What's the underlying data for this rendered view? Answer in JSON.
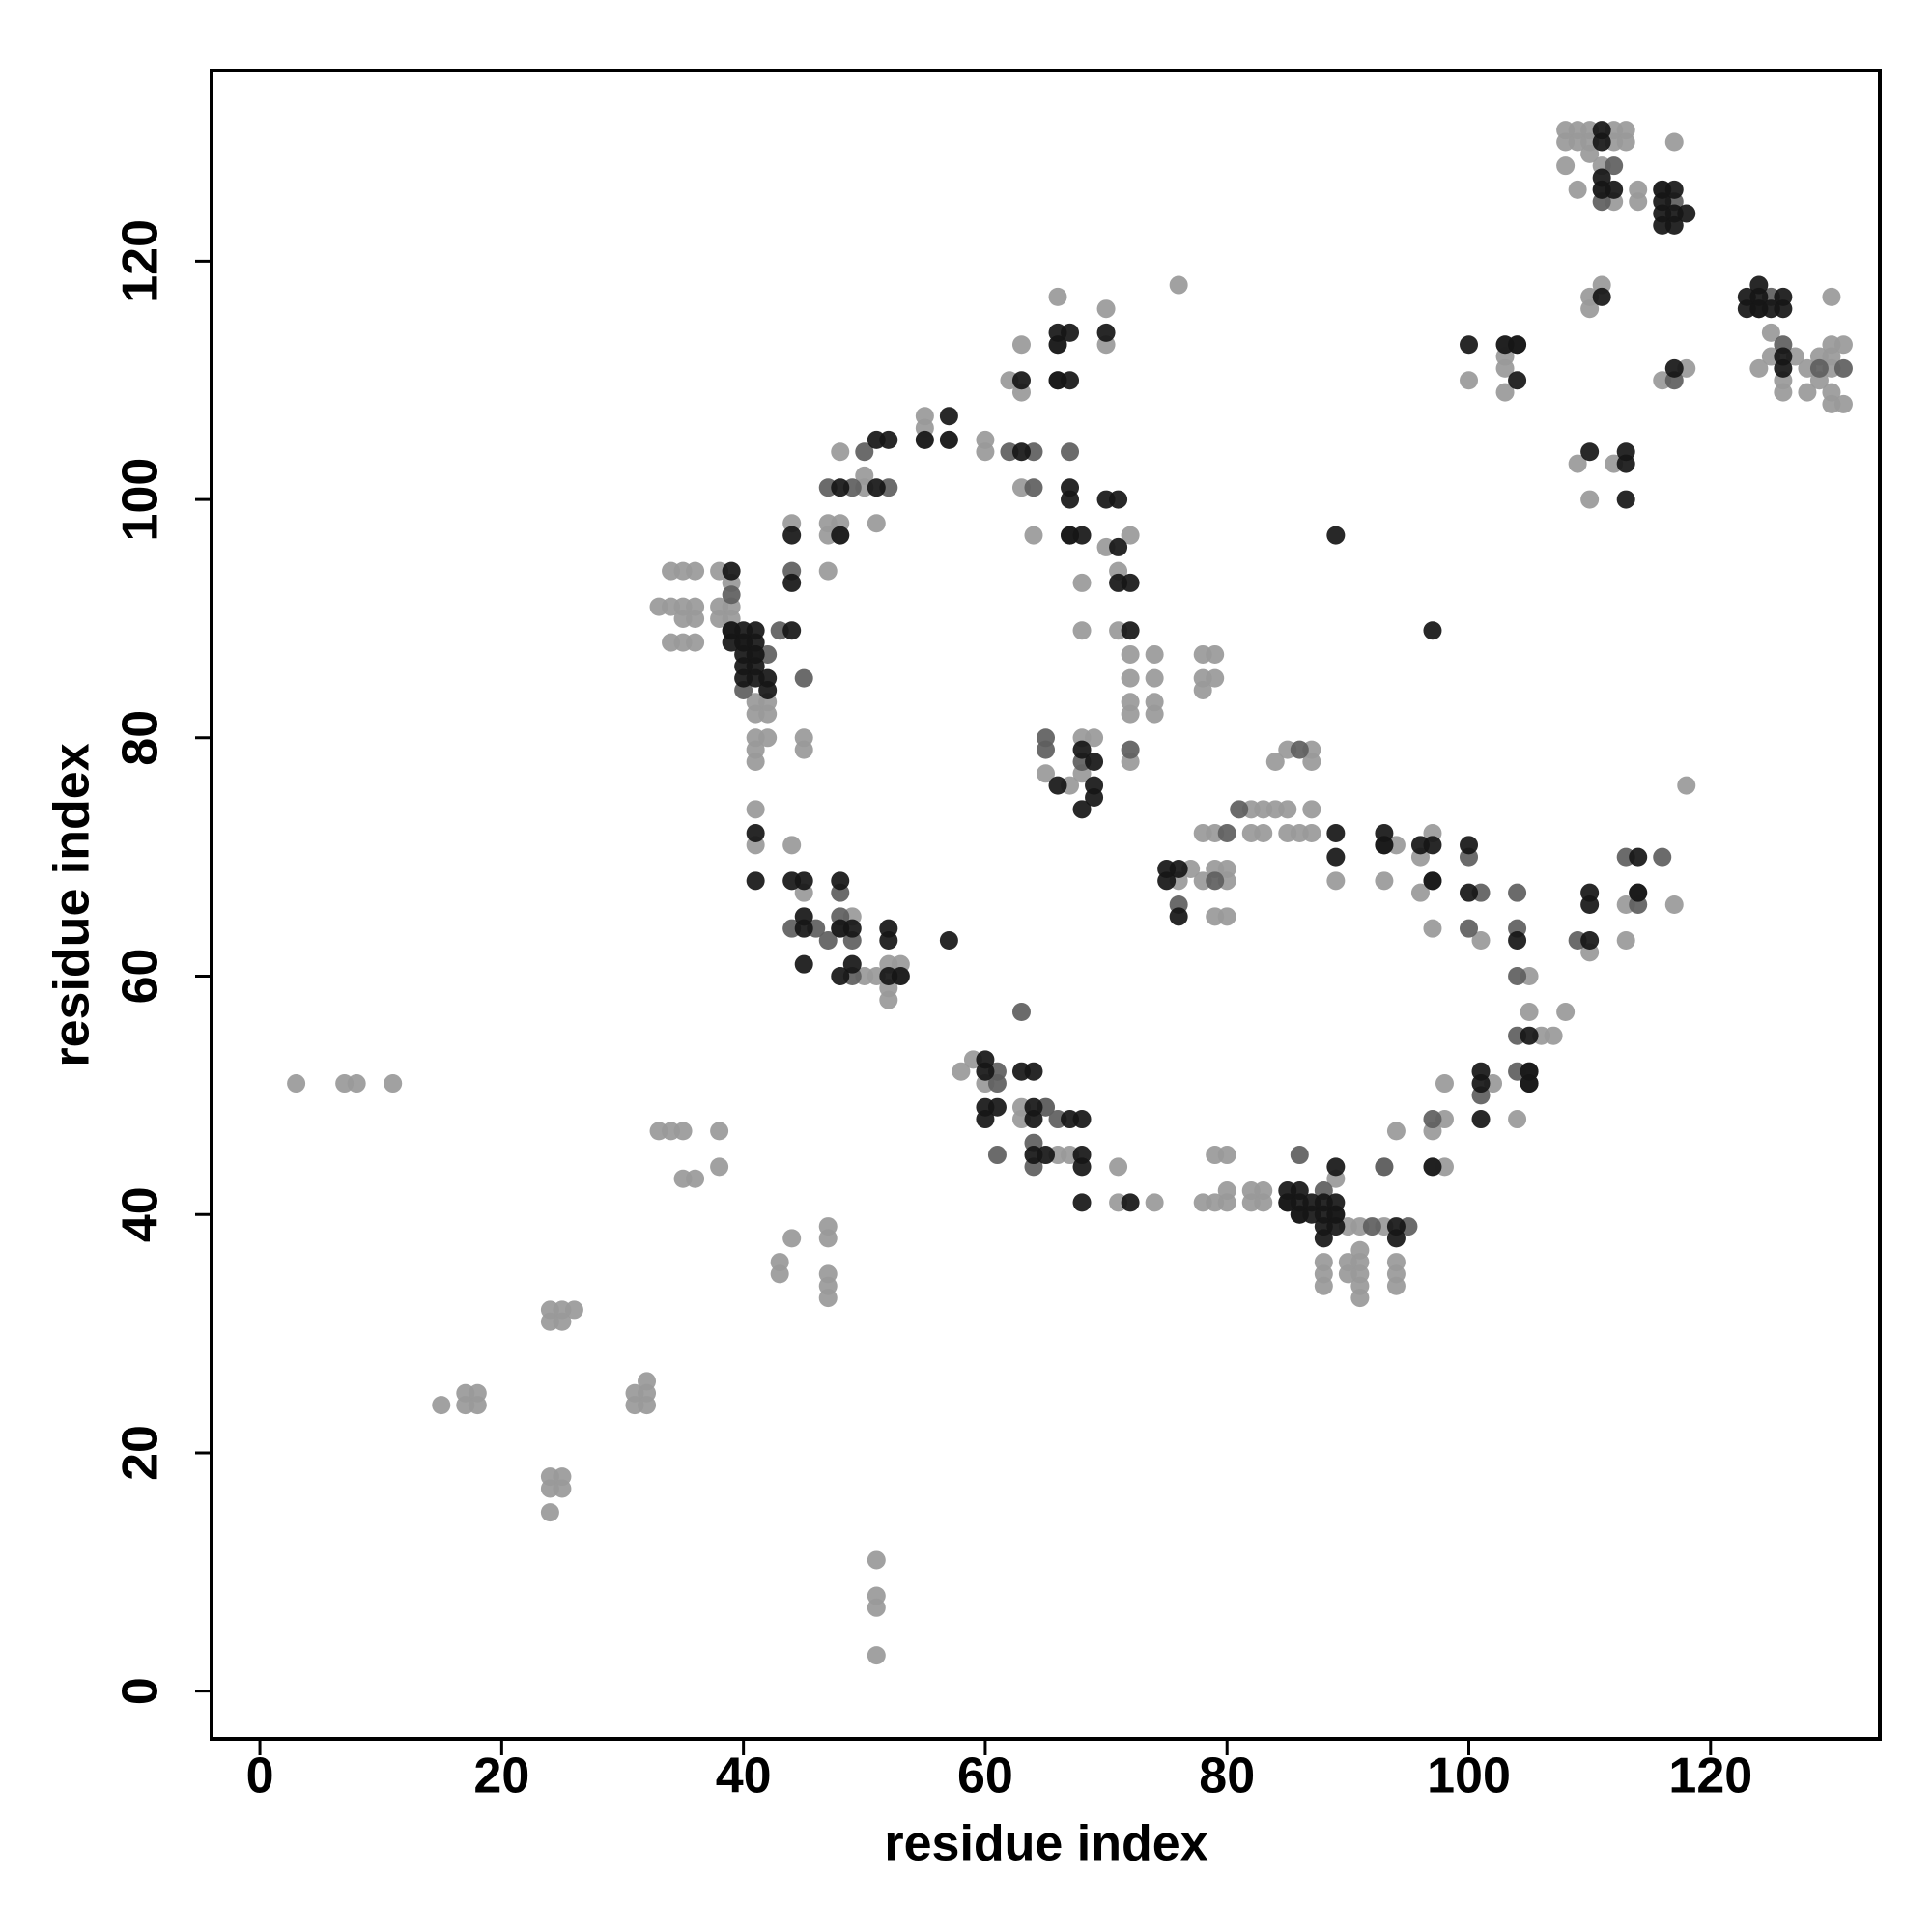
{
  "chart_data": {
    "type": "scatter",
    "xlabel": "residue index",
    "ylabel": "residue index",
    "xlim": [
      -4,
      134
    ],
    "ylim": [
      -4,
      136
    ],
    "xticks": [
      0,
      20,
      40,
      60,
      80,
      100,
      120
    ],
    "yticks": [
      0,
      20,
      40,
      60,
      80,
      100,
      120
    ],
    "grid": false,
    "series": [
      {
        "color": "#999999",
        "x": [
          3,
          7,
          8,
          11,
          15,
          17,
          17,
          18,
          18,
          24,
          24,
          25,
          25,
          26,
          24,
          24,
          25,
          25,
          24,
          31,
          31,
          32,
          32,
          32,
          33,
          34,
          35,
          35,
          36,
          38,
          38,
          43,
          43,
          44,
          47,
          47,
          47,
          47,
          47,
          51,
          51,
          51,
          51,
          33,
          34,
          34,
          34,
          35,
          35,
          35,
          35,
          36,
          36,
          36,
          36,
          38,
          38,
          38,
          39,
          39,
          39,
          41,
          41,
          42,
          42,
          41,
          42,
          41,
          41,
          45,
          45,
          41,
          41,
          44,
          45,
          49,
          48,
          44,
          47,
          47,
          47,
          48,
          48,
          48,
          50,
          50,
          51,
          55,
          55,
          55,
          57,
          60,
          60,
          62,
          63,
          63,
          63,
          64,
          66,
          66,
          68,
          68,
          70,
          70,
          70,
          71,
          71,
          72,
          72,
          72,
          72,
          72,
          74,
          74,
          74,
          74,
          76,
          78,
          78,
          78,
          79,
          79,
          65,
          67,
          68,
          68,
          69,
          72,
          50,
          51,
          52,
          52,
          52,
          53,
          53,
          58,
          59,
          60,
          63,
          63,
          65,
          66,
          67,
          71,
          71,
          74,
          78,
          79,
          79,
          80,
          80,
          80,
          82,
          82,
          83,
          83,
          76,
          77,
          78,
          78,
          79,
          79,
          79,
          80,
          80,
          80,
          82,
          82,
          83,
          83,
          84,
          84,
          85,
          85,
          85,
          86,
          87,
          87,
          87,
          87,
          89,
          93,
          94,
          96,
          96,
          97,
          97,
          97,
          97,
          98,
          98,
          98,
          101,
          102,
          104,
          105,
          105,
          106,
          107,
          108,
          88,
          88,
          88,
          89,
          90,
          90,
          90,
          91,
          91,
          91,
          91,
          91,
          91,
          93,
          94,
          94,
          94,
          94,
          93,
          108,
          108,
          108,
          109,
          109,
          109,
          110,
          110,
          110,
          111,
          111,
          112,
          112,
          112,
          113,
          113,
          114,
          114,
          117,
          116,
          118,
          116,
          110,
          110,
          111,
          109,
          110,
          112,
          113,
          113,
          117,
          118,
          110,
          103,
          103,
          103,
          100,
          103,
          124,
          125,
          125,
          126,
          126,
          127,
          128,
          128,
          129,
          129,
          130,
          130,
          130,
          130,
          130,
          130,
          131,
          131
        ],
        "values": [
          51,
          51,
          51,
          51,
          24,
          25,
          24,
          25,
          24,
          32,
          31,
          32,
          31,
          32,
          18,
          17,
          18,
          17,
          15,
          25,
          24,
          26,
          25,
          24,
          47,
          47,
          47,
          43,
          43,
          47,
          44,
          36,
          35,
          38,
          39,
          38,
          35,
          34,
          33,
          11,
          8,
          7,
          3,
          91,
          94,
          91,
          88,
          94,
          91,
          90,
          88,
          94,
          91,
          90,
          88,
          94,
          91,
          90,
          91,
          90,
          93,
          83,
          82,
          83,
          82,
          80,
          80,
          79,
          78,
          80,
          79,
          74,
          71,
          71,
          67,
          65,
          64,
          98,
          94,
          98,
          97,
          104,
          97,
          98,
          102,
          101,
          98,
          107,
          106,
          105,
          105,
          105,
          104,
          110,
          109,
          113,
          101,
          97,
          117,
          113,
          93,
          89,
          116,
          113,
          96,
          94,
          89,
          97,
          87,
          85,
          83,
          82,
          87,
          85,
          83,
          82,
          118,
          87,
          85,
          84,
          87,
          85,
          77,
          76,
          80,
          77,
          80,
          78,
          60,
          60,
          61,
          59,
          58,
          61,
          60,
          52,
          53,
          51,
          49,
          48,
          49,
          45,
          45,
          44,
          41,
          41,
          41,
          45,
          41,
          45,
          42,
          41,
          42,
          41,
          42,
          41,
          68,
          69,
          72,
          68,
          72,
          69,
          65,
          69,
          68,
          65,
          74,
          72,
          74,
          72,
          74,
          78,
          74,
          72,
          79,
          72,
          79,
          78,
          74,
          72,
          68,
          68,
          71,
          70,
          67,
          72,
          64,
          47,
          44,
          48,
          44,
          51,
          63,
          51,
          48,
          57,
          60,
          55,
          55,
          57,
          36,
          35,
          34,
          43,
          39,
          36,
          35,
          39,
          37,
          36,
          35,
          34,
          33,
          39,
          47,
          36,
          35,
          34,
          44,
          131,
          130,
          128,
          131,
          130,
          126,
          131,
          130,
          129,
          128,
          126,
          131,
          130,
          125,
          131,
          130,
          126,
          125,
          130,
          126,
          111,
          110,
          117,
          116,
          118,
          103,
          100,
          103,
          66,
          63,
          66,
          76,
          62,
          113,
          112,
          109,
          110,
          111,
          111,
          114,
          112,
          110,
          109,
          112,
          111,
          109,
          112,
          110,
          117,
          113,
          112,
          111,
          109,
          108,
          113,
          108
        ]
      },
      {
        "color": "#5e5e5e",
        "x": [
          39,
          41,
          42,
          43,
          45,
          40,
          44,
          46,
          47,
          48,
          48,
          49,
          49,
          61,
          61,
          64,
          64,
          65,
          63,
          61,
          66,
          86,
          85,
          86,
          88,
          89,
          92,
          93,
          95,
          97,
          101,
          104,
          104,
          104,
          104,
          105,
          105,
          62,
          64,
          64,
          67,
          67,
          66,
          65,
          65,
          68,
          72,
          76,
          79,
          80,
          81,
          86,
          93,
          97,
          100,
          100,
          101,
          104,
          109,
          113,
          114,
          114,
          116,
          117,
          112,
          111,
          117,
          124,
          125,
          126,
          129,
          131,
          104,
          49,
          50,
          39,
          40,
          44,
          47,
          52
        ],
        "values": [
          89,
          87,
          87,
          89,
          85,
          84,
          64,
          64,
          63,
          67,
          65,
          63,
          60,
          52,
          51,
          46,
          44,
          49,
          57,
          45,
          48,
          45,
          41,
          40,
          42,
          40,
          39,
          44,
          39,
          48,
          50,
          64,
          60,
          55,
          52,
          52,
          51,
          104,
          104,
          101,
          104,
          97,
          110,
          80,
          79,
          78,
          79,
          66,
          68,
          72,
          74,
          79,
          71,
          68,
          70,
          64,
          67,
          67,
          63,
          70,
          67,
          66,
          70,
          110,
          128,
          125,
          125,
          116,
          117,
          113,
          111,
          111,
          113,
          101,
          104,
          92,
          88,
          94,
          101,
          101
        ]
      },
      {
        "color": "#161616",
        "x": [
          39,
          39,
          39,
          40,
          40,
          40,
          40,
          40,
          41,
          41,
          41,
          41,
          42,
          42,
          41,
          44,
          44,
          44,
          41,
          41,
          44,
          45,
          45,
          45,
          45,
          48,
          48,
          49,
          49,
          48,
          52,
          52,
          52,
          53,
          57,
          48,
          48,
          51,
          52,
          51,
          55,
          57,
          57,
          63,
          63,
          66,
          66,
          66,
          67,
          67,
          67,
          67,
          67,
          68,
          70,
          70,
          71,
          71,
          71,
          72,
          72,
          68,
          69,
          69,
          69,
          66,
          68,
          75,
          75,
          76,
          76,
          89,
          89,
          93,
          93,
          96,
          97,
          97,
          100,
          100,
          60,
          60,
          60,
          60,
          61,
          63,
          64,
          64,
          64,
          64,
          65,
          67,
          68,
          68,
          68,
          68,
          72,
          85,
          85,
          86,
          86,
          86,
          87,
          87,
          88,
          88,
          88,
          88,
          89,
          89,
          89,
          89,
          94,
          94,
          97,
          101,
          101,
          101,
          104,
          105,
          105,
          105,
          89,
          97,
          100,
          103,
          104,
          104,
          110,
          113,
          113,
          113,
          111,
          117,
          110,
          110,
          110,
          114,
          114,
          111,
          111,
          111,
          111,
          112,
          116,
          116,
          116,
          116,
          117,
          117,
          117,
          118,
          123,
          123,
          124,
          124,
          124,
          125,
          126,
          126,
          126,
          126
        ],
        "values": [
          94,
          89,
          88,
          89,
          88,
          87,
          86,
          85,
          89,
          88,
          86,
          85,
          85,
          84,
          87,
          89,
          97,
          93,
          72,
          68,
          68,
          68,
          65,
          64,
          61,
          68,
          64,
          64,
          61,
          60,
          64,
          63,
          60,
          60,
          63,
          101,
          97,
          105,
          105,
          101,
          105,
          105,
          107,
          110,
          104,
          114,
          113,
          110,
          114,
          110,
          101,
          100,
          97,
          97,
          114,
          100,
          100,
          96,
          93,
          93,
          89,
          79,
          78,
          76,
          75,
          76,
          74,
          68,
          69,
          69,
          65,
          72,
          70,
          72,
          71,
          71,
          71,
          68,
          71,
          67,
          52,
          49,
          48,
          53,
          49,
          52,
          52,
          49,
          48,
          45,
          45,
          48,
          48,
          45,
          44,
          41,
          41,
          42,
          41,
          42,
          41,
          40,
          41,
          40,
          41,
          40,
          39,
          38,
          41,
          40,
          39,
          44,
          39,
          38,
          44,
          52,
          51,
          48,
          63,
          55,
          52,
          51,
          97,
          89,
          113,
          113,
          113,
          110,
          104,
          104,
          103,
          100,
          117,
          111,
          67,
          66,
          63,
          70,
          67,
          131,
          130,
          127,
          126,
          126,
          126,
          125,
          124,
          123,
          126,
          124,
          123,
          124,
          117,
          116,
          118,
          117,
          116,
          116,
          117,
          116,
          112,
          111
        ]
      }
    ]
  }
}
